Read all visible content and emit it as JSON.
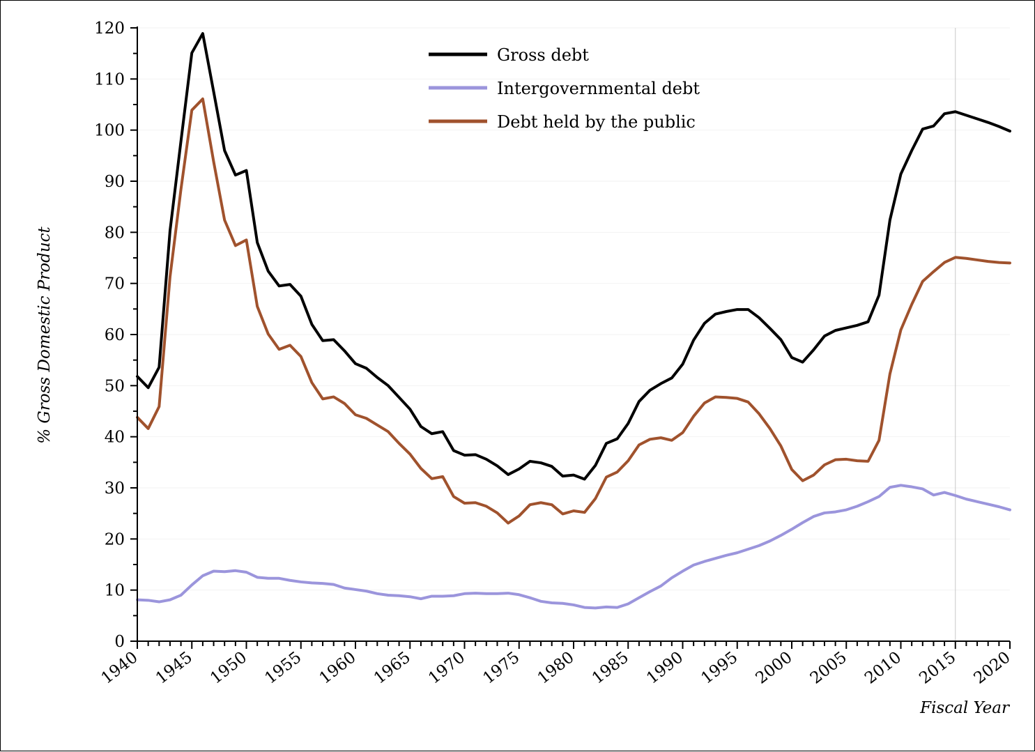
{
  "chart_data": {
    "type": "line",
    "xlabel": "Fiscal Year",
    "ylabel": "% Gross Domestic Product",
    "xlim": [
      1940,
      2020
    ],
    "ylim": [
      0,
      120
    ],
    "x_ticks": [
      "1940",
      "1945",
      "1950",
      "1955",
      "1960",
      "1965",
      "1970",
      "1975",
      "1980",
      "1985",
      "1990",
      "1995",
      "2000",
      "2005",
      "2010",
      "2015",
      "2020"
    ],
    "y_ticks": [
      "0",
      "10",
      "20",
      "30",
      "40",
      "50",
      "60",
      "70",
      "80",
      "90",
      "100",
      "110",
      "120"
    ],
    "reference_line_x": 2015,
    "legend_position": "top-center",
    "years": [
      1940,
      1941,
      1942,
      1943,
      1944,
      1945,
      1946,
      1947,
      1948,
      1949,
      1950,
      1951,
      1952,
      1953,
      1954,
      1955,
      1956,
      1957,
      1958,
      1959,
      1960,
      1961,
      1962,
      1963,
      1964,
      1965,
      1966,
      1967,
      1968,
      1969,
      1970,
      1971,
      1972,
      1973,
      1974,
      1975,
      1976,
      1977,
      1978,
      1979,
      1980,
      1981,
      1982,
      1983,
      1984,
      1985,
      1986,
      1987,
      1988,
      1989,
      1990,
      1991,
      1992,
      1993,
      1994,
      1995,
      1996,
      1997,
      1998,
      1999,
      2000,
      2001,
      2002,
      2003,
      2004,
      2005,
      2006,
      2007,
      2008,
      2009,
      2010,
      2011,
      2012,
      2013,
      2014,
      2015,
      2016,
      2017,
      2018,
      2019,
      2020
    ],
    "series": [
      {
        "name": "Gross debt",
        "color": "#000000",
        "values": [
          51.8,
          49.6,
          53.6,
          80.3,
          97.8,
          115.1,
          118.9,
          107.5,
          96.0,
          91.2,
          92.1,
          78.0,
          72.4,
          69.5,
          69.8,
          67.5,
          62.0,
          58.8,
          59.0,
          56.8,
          54.3,
          53.4,
          51.6,
          50.0,
          47.7,
          45.4,
          42.0,
          40.6,
          41.0,
          37.3,
          36.4,
          36.5,
          35.6,
          34.3,
          32.6,
          33.7,
          35.2,
          34.9,
          34.2,
          32.3,
          32.5,
          31.7,
          34.4,
          38.7,
          39.6,
          42.6,
          46.9,
          49.1,
          50.4,
          51.5,
          54.2,
          58.9,
          62.2,
          64.0,
          64.5,
          64.9,
          64.9,
          63.3,
          61.2,
          59.0,
          55.5,
          54.6,
          57.0,
          59.7,
          60.8,
          61.3,
          61.8,
          62.5,
          67.7,
          82.4,
          91.4,
          96.0,
          100.2,
          100.8,
          103.2,
          103.6,
          102.9,
          102.2,
          101.5,
          100.7,
          99.8
        ]
      },
      {
        "name": "Intergovernmental debt",
        "color": "#9b95dc",
        "values": [
          8.1,
          8.0,
          7.7,
          8.1,
          9.0,
          11.0,
          12.8,
          13.7,
          13.6,
          13.8,
          13.5,
          12.5,
          12.3,
          12.3,
          11.9,
          11.6,
          11.4,
          11.3,
          11.1,
          10.4,
          10.1,
          9.8,
          9.3,
          9.0,
          8.9,
          8.7,
          8.3,
          8.8,
          8.8,
          8.9,
          9.3,
          9.4,
          9.3,
          9.3,
          9.4,
          9.1,
          8.5,
          7.8,
          7.5,
          7.4,
          7.1,
          6.6,
          6.5,
          6.7,
          6.6,
          7.3,
          8.5,
          9.7,
          10.8,
          12.4,
          13.7,
          14.9,
          15.6,
          16.2,
          16.8,
          17.3,
          18.0,
          18.7,
          19.6,
          20.7,
          21.9,
          23.2,
          24.4,
          25.1,
          25.3,
          25.7,
          26.4,
          27.3,
          28.3,
          30.1,
          30.5,
          30.2,
          29.8,
          28.6,
          29.1,
          28.5,
          27.8,
          27.3,
          26.8,
          26.3,
          25.7
        ]
      },
      {
        "name": "Debt held by the public",
        "color": "#a0522d",
        "values": [
          43.8,
          41.6,
          45.9,
          71.3,
          88.4,
          103.9,
          106.1,
          93.8,
          82.4,
          77.4,
          78.5,
          65.5,
          60.1,
          57.1,
          57.9,
          55.7,
          50.6,
          47.4,
          47.8,
          46.5,
          44.3,
          43.6,
          42.3,
          41.0,
          38.7,
          36.6,
          33.8,
          31.8,
          32.2,
          28.3,
          27.0,
          27.1,
          26.4,
          25.1,
          23.1,
          24.5,
          26.7,
          27.1,
          26.7,
          24.9,
          25.5,
          25.2,
          27.9,
          32.1,
          33.1,
          35.3,
          38.4,
          39.5,
          39.8,
          39.3,
          40.8,
          44.0,
          46.6,
          47.8,
          47.7,
          47.5,
          46.8,
          44.5,
          41.6,
          38.2,
          33.6,
          31.4,
          32.5,
          34.5,
          35.5,
          35.6,
          35.3,
          35.2,
          39.3,
          52.3,
          60.9,
          65.9,
          70.4,
          72.3,
          74.1,
          75.1,
          74.9,
          74.6,
          74.3,
          74.1,
          74.0
        ]
      }
    ]
  }
}
